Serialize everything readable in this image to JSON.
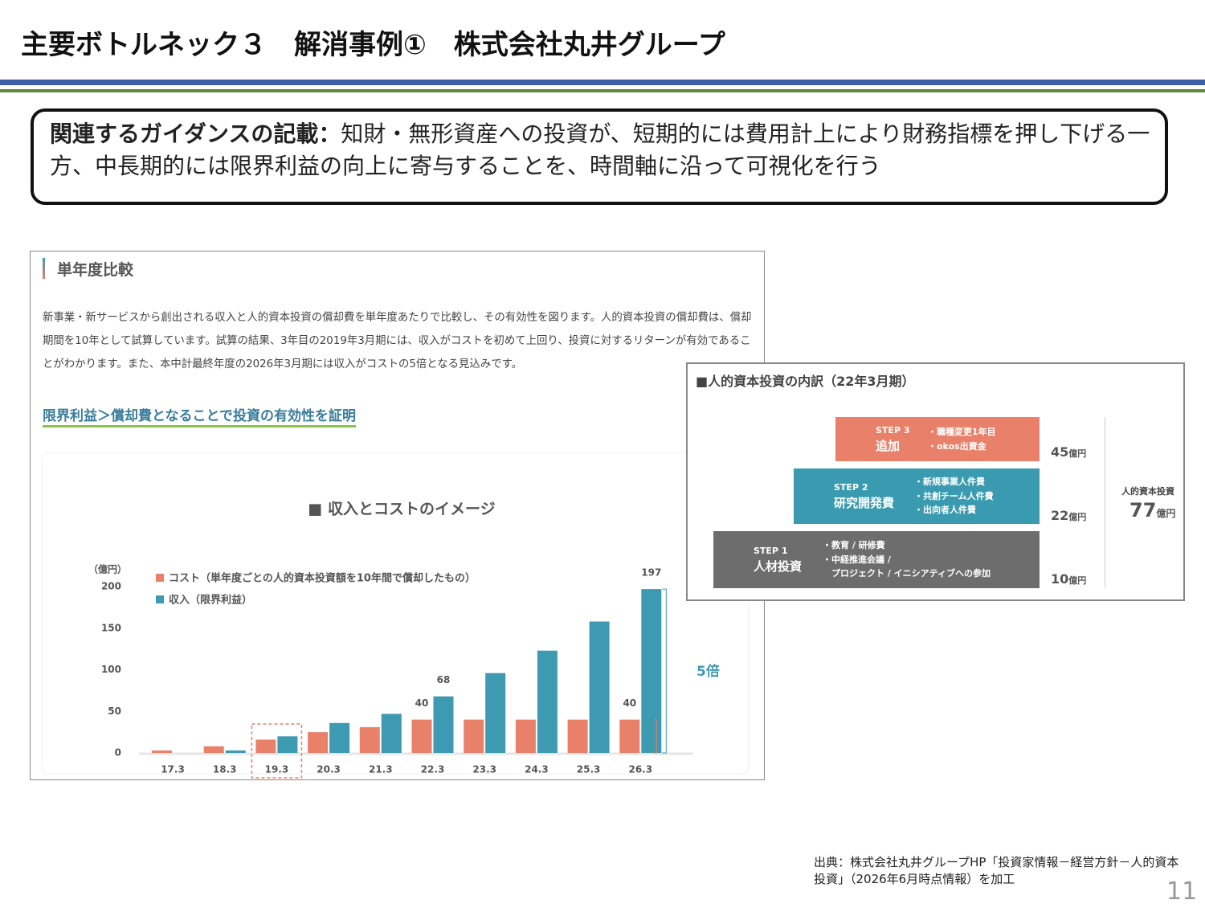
{
  "header": {
    "title": "主要ボトルネック３　解消事例①　株式会社丸井グループ"
  },
  "guidance": {
    "label": "関連するガイダンスの記載：",
    "text": "知財・無形資産への投資が、短期的には費用計上により財務指標を押し下げる一方、中長期的には限界利益の向上に寄与することを、時間軸に沿って可視化を行う"
  },
  "left_panel": {
    "heading": "単年度比較",
    "paragraph": "新事業・新サービスから創出される収入と人的資本投資の償却費を単年度あたりで比較し、その有効性を図ります。人的資本投資の償却費は、償却期間を10年として試算しています。試算の結果、3年目の2019年3月期には、収入がコストを初めて上回り、投資に対するリターンが有効であることがわかります。また、本中計最終年度の2026年3月期には収入がコストの5倍となる見込みです。",
    "link": "限界利益＞償却費となることで投資の有効性を証明"
  },
  "chart_data": {
    "type": "bar",
    "title": "■ 収入とコストのイメージ",
    "y_label": "（億円）",
    "categories": [
      "17.3",
      "18.3",
      "19.3",
      "20.3",
      "21.3",
      "22.3",
      "23.3",
      "24.3",
      "25.3",
      "26.3"
    ],
    "series": [
      {
        "name": "コスト（単年度ごとの人的資本投資額を10年間で償却したもの）",
        "color": "#e8806a",
        "values": [
          3,
          8,
          16,
          25,
          31,
          40,
          40,
          40,
          40,
          40
        ],
        "value_labels": [
          null,
          null,
          null,
          null,
          null,
          "40",
          null,
          null,
          null,
          "40"
        ]
      },
      {
        "name": "収入（限界利益）",
        "color": "#3e9ab0",
        "values": [
          0,
          3,
          20,
          36,
          47,
          68,
          96,
          123,
          158,
          197
        ],
        "value_labels": [
          null,
          null,
          null,
          null,
          null,
          "68",
          null,
          null,
          null,
          "197"
        ]
      }
    ],
    "ylim": [
      0,
      200
    ],
    "yticks": [
      0,
      50,
      100,
      150,
      200
    ],
    "annotation": "5倍"
  },
  "breakdown": {
    "title": "■人的資本投資の内訳（22年3月期）",
    "steps": [
      {
        "step": "STEP 3",
        "label": "追加",
        "items": [
          "・職種変更1年目",
          "・okos出資金"
        ],
        "amount": 45,
        "unit": "億円"
      },
      {
        "step": "STEP 2",
        "label": "研究開発費",
        "items": [
          "・新規事業人件費",
          "・共創チーム人件費",
          "・出向者人件費"
        ],
        "amount": 22,
        "unit": "億円"
      },
      {
        "step": "STEP 1",
        "label": "人材投資",
        "items": [
          "・教育 / 研修費",
          "・中経推進会議 /",
          "　プロジェクト / イニシアティブへの参加"
        ],
        "amount": 10,
        "unit": "億円"
      }
    ],
    "total_label": "人的資本投資",
    "total_amount": 77,
    "total_unit": "億円"
  },
  "source": "出典：株式会社丸井グループHP「投資家情報－経営方針－人的資本投資」（2026年6月時点情報）を加工",
  "page_number": "11"
}
